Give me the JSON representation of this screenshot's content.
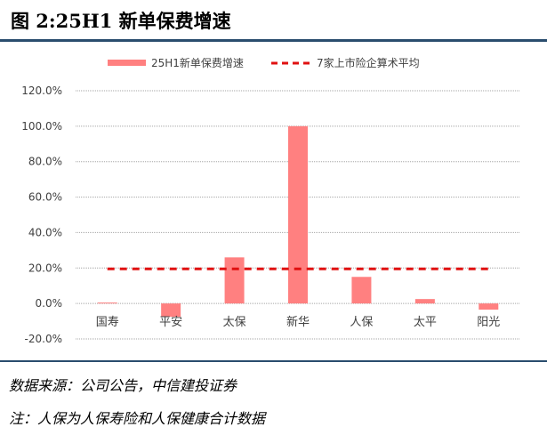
{
  "header": {
    "title": "图 2:25H1 新单保费增速"
  },
  "footnotes": {
    "source": "数据来源：公司公告，中信建投证券",
    "note": "注：人保为人保寿险和人保健康合计数据"
  },
  "chart_data": {
    "type": "bar",
    "categories": [
      "国寿",
      "平安",
      "太保",
      "新华",
      "人保",
      "太平",
      "阳光"
    ],
    "series": [
      {
        "name": "25H1新单保费增速",
        "type": "bar",
        "color": "#ff8080",
        "values": [
          0.5,
          -7.5,
          26.0,
          100.0,
          15.0,
          2.5,
          -3.5
        ]
      },
      {
        "name": "7家上市险企算术平均",
        "type": "line",
        "style": "dashed",
        "color": "#e01010",
        "values": [
          19.5,
          19.5,
          19.5,
          19.5,
          19.5,
          19.5,
          19.5
        ]
      }
    ],
    "ylim": [
      -20,
      120
    ],
    "yticks": [
      "-20.0%",
      "0.0%",
      "20.0%",
      "40.0%",
      "60.0%",
      "80.0%",
      "100.0%",
      "120.0%"
    ],
    "grid": true,
    "legend": "top"
  }
}
